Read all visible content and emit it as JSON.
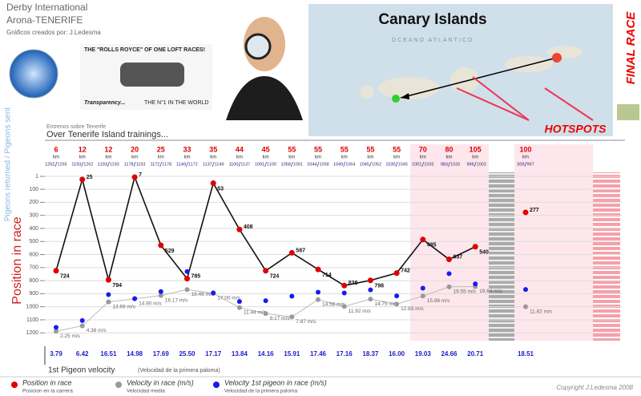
{
  "header": {
    "title1": "Derby International",
    "title2": "Arona-TENERIFE",
    "credit": "Gráficos creados por: J.Ledesma"
  },
  "promo": {
    "tagline": "THE \"ROLLS ROYCE\" OF ONE LOFT RACES!",
    "transparency": "Transparency...",
    "slogan": "THE N°1 IN THE WORLD"
  },
  "map": {
    "title": "Canary Islands",
    "ocean": "OCEANO ATLANTICO",
    "hotspots": "HOTSPOTS"
  },
  "final_race": "FINAL RACE",
  "chart_data": {
    "type": "line",
    "section_subtitle": "Entrenos sobre Tenerife",
    "section_title": "Over Tenerife Island trainings...",
    "y_label_top": "Pigeons returned / Pigeons sent",
    "ylabel": "Position in race",
    "distance_unit": "km",
    "distances": [
      6,
      12,
      12,
      20,
      25,
      33,
      35,
      44,
      45,
      55,
      55,
      55,
      55,
      55,
      70,
      80,
      105,
      100
    ],
    "returned": [
      1262,
      1193,
      1193,
      1178,
      1172,
      1149,
      1137,
      1100,
      1091,
      1058,
      1044,
      1049,
      1045,
      1030,
      1001,
      983,
      996,
      509
    ],
    "sent": [
      1265,
      1262,
      1193,
      1193,
      1178,
      1172,
      1149,
      1137,
      1100,
      1091,
      1058,
      1064,
      1052,
      1045,
      1035,
      1026,
      1002,
      997
    ],
    "ylim": [
      1,
      1260
    ],
    "y_inverted": true,
    "yticks": [
      1,
      100,
      200,
      300,
      400,
      500,
      600,
      700,
      800,
      900,
      1000,
      1100,
      1200
    ],
    "grid": true,
    "y2lim": [
      -1.4,
      62.5
    ],
    "series": [
      {
        "name": "Position in race",
        "subtitle": "Posicion en la carrera",
        "color": "#e00000",
        "values": [
          724,
          25,
          794,
          7,
          529,
          785,
          53,
          408,
          724,
          587,
          714,
          838,
          798,
          742,
          485,
          637,
          540,
          277
        ]
      },
      {
        "name": "Velocity in race (m/s)",
        "subtitle": "Velocidad media",
        "color": "#999999",
        "axis": "y2",
        "values": [
          2.25,
          4.38,
          13.69,
          14.9,
          16.17,
          18.46,
          17,
          11.44,
          9.17,
          7.87,
          14.58,
          11.92,
          14.75,
          12.83,
          15.96,
          19.55,
          19.64,
          11.82
        ],
        "value_labels": [
          "2.25 m/s",
          "4.38 m/s",
          "13.69 m/s",
          "14.90 m/s",
          "16.17 m/s",
          "18.46 m/s",
          "17.00 m/s",
          "11.44 m/s",
          "9.17 m/s",
          "7.87 m/s",
          "14.58 m/s",
          "11.92 m/s",
          "14.75 m/s",
          "12.83 m/s",
          "15.96 m/s",
          "19.55 m/s",
          "19.64 m/s",
          "11.82 m/s"
        ]
      },
      {
        "name": "Velocity 1st pigeon in race (m/s)",
        "subtitle": "Velocidad de la primera paloma",
        "color": "#1a1aee",
        "axis": "y2",
        "values": [
          3.79,
          6.42,
          16.51,
          14.98,
          17.69,
          25.5,
          17.17,
          13.84,
          14.16,
          15.91,
          17.46,
          17.16,
          18.37,
          16,
          19.03,
          24.66,
          20.71,
          18.51
        ],
        "value_labels": [
          "3.79",
          "6.42",
          "16.51",
          "14.98",
          "17.69",
          "25.50",
          "17.17",
          "13.84",
          "14.16",
          "15.91",
          "17.46",
          "17.16",
          "18.37",
          "16.00",
          "19.03",
          "24.66",
          "20.71",
          "18.51"
        ]
      }
    ],
    "velocity_row_title": "1st Pigeon velocity",
    "velocity_row_subtitle": "(Velocidad de la primera paloma)",
    "copyright": "Copyright J.Ledesma 2008"
  }
}
